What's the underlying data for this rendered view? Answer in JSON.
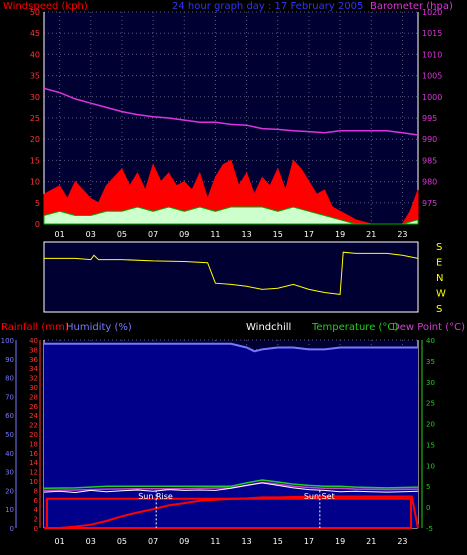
{
  "colors": {
    "background": "#000000",
    "plot_bg": "#000033",
    "wind_plot_bg": "#00007a",
    "wind_speed": "#ff0000",
    "wind_gust": "#ff0000",
    "wind_avg": "#ccffcc",
    "wind_green": "#00aa00",
    "barometer": "#dd33dd",
    "direction": "#ffff00",
    "rainfall": "#ff0000",
    "humidity": "#7777ff",
    "windchill": "#ffffff",
    "temperature": "#22cc22",
    "dewpoint": "#cc44cc",
    "sun_marker": "#ffffff",
    "axis": "#ffffff"
  },
  "header": {
    "windspeed_label": "Windspeed (kph)",
    "title": "24 hour graph day : 17 February 2005",
    "barometer_label": "Barometer (hpa)"
  },
  "direction": {
    "labels": [
      "S",
      "E",
      "N",
      "W",
      "S"
    ]
  },
  "lower_header": {
    "rainfall_label": "Rainfall (mm)",
    "humidity_label": "Humidity (%)",
    "windchill_label": "Windchill",
    "temperature_label": "Temperature (°C)",
    "dewpoint_label": "Dew Point (°C)"
  },
  "sun": {
    "rise_label": "Sun Rise",
    "set_label": "Sun Set",
    "rise_hour": 7.2,
    "set_hour": 17.7
  },
  "chart_data": [
    {
      "type": "line",
      "x_ticks": [
        "01",
        "03",
        "05",
        "07",
        "09",
        "11",
        "13",
        "15",
        "17",
        "19",
        "21",
        "23"
      ],
      "x_tick_hours": [
        1,
        3,
        5,
        7,
        9,
        11,
        13,
        15,
        17,
        19,
        21,
        23
      ],
      "xlim": [
        0,
        24
      ],
      "y_left": {
        "label": "Windspeed (kph)",
        "ylim": [
          0,
          50
        ],
        "ticks": [
          0,
          5,
          10,
          15,
          20,
          25,
          30,
          35,
          40,
          45,
          50
        ]
      },
      "y_right": {
        "label": "Barometer (hpa)",
        "ylim": [
          970,
          1020
        ],
        "ticks": [
          975,
          980,
          985,
          990,
          995,
          1000,
          1005,
          1010,
          1015,
          1020
        ]
      },
      "series": [
        {
          "name": "Barometer (hpa)",
          "axis": "right",
          "x": [
            0,
            1,
            2,
            3,
            4,
            5,
            6,
            7,
            8,
            9,
            10,
            11,
            12,
            13,
            14,
            15,
            16,
            17,
            18,
            19,
            20,
            21,
            22,
            23,
            24
          ],
          "y": [
            1002,
            1001,
            999.5,
            998.5,
            997.5,
            996.5,
            995.8,
            995.3,
            995,
            994.5,
            994,
            994,
            993.5,
            993.3,
            992.5,
            992.3,
            992,
            991.8,
            991.5,
            992,
            992,
            992,
            992,
            991.5,
            991
          ]
        },
        {
          "name": "Windspeed (kph)",
          "axis": "left",
          "x": [
            0,
            0.5,
            1,
            1.5,
            2,
            2.5,
            3,
            3.5,
            4,
            4.5,
            5,
            5.5,
            6,
            6.5,
            7,
            7.5,
            8,
            8.5,
            9,
            9.5,
            10,
            10.5,
            11,
            11.5,
            12,
            12.5,
            13,
            13.5,
            14,
            14.5,
            15,
            15.5,
            16,
            16.5,
            17,
            17.5,
            18,
            18.5,
            19,
            19.5,
            20,
            21,
            22,
            23,
            23.5,
            24
          ],
          "y": [
            7,
            8,
            9,
            6,
            10,
            8,
            6,
            5,
            9,
            11,
            13,
            9,
            12,
            8,
            14,
            10,
            12,
            9,
            10,
            8,
            12,
            6,
            11,
            14,
            15,
            9,
            12,
            7,
            11,
            9,
            13,
            8,
            15,
            13,
            10,
            7,
            8,
            4,
            3,
            2,
            1,
            0,
            0,
            0,
            3,
            8
          ]
        },
        {
          "name": "Wind Average",
          "axis": "left",
          "x": [
            0,
            1,
            2,
            3,
            4,
            5,
            6,
            7,
            8,
            9,
            10,
            11,
            12,
            13,
            14,
            15,
            16,
            17,
            18,
            19,
            20,
            21,
            22,
            23,
            24
          ],
          "y": [
            2,
            3,
            2,
            2,
            3,
            3,
            4,
            3,
            4,
            3,
            4,
            3,
            4,
            4,
            4,
            3,
            4,
            3,
            2,
            1,
            0,
            0,
            0,
            0,
            1
          ]
        },
        {
          "name": "Wind Direction",
          "axis": "direction",
          "x": [
            0,
            1,
            2,
            3,
            3.2,
            3.5,
            5,
            7,
            9,
            10.5,
            11,
            12,
            13,
            14,
            15,
            16,
            17,
            18,
            19,
            19.2,
            20,
            22,
            23,
            24
          ],
          "y": [
            0.2,
            0.2,
            0.2,
            0.22,
            0.15,
            0.22,
            0.22,
            0.24,
            0.25,
            0.27,
            0.6,
            0.62,
            0.65,
            0.7,
            0.68,
            0.62,
            0.7,
            0.75,
            0.78,
            0.1,
            0.12,
            0.12,
            0.15,
            0.2
          ]
        }
      ]
    },
    {
      "type": "line",
      "x_ticks": [
        "01",
        "03",
        "05",
        "07",
        "09",
        "11",
        "13",
        "15",
        "17",
        "19",
        "21",
        "23"
      ],
      "x_tick_hours": [
        1,
        3,
        5,
        7,
        9,
        11,
        13,
        15,
        17,
        19,
        21,
        23
      ],
      "xlim": [
        0,
        24
      ],
      "y_humidity": {
        "label": "Humidity (%)",
        "ylim": [
          0,
          100
        ],
        "ticks": [
          0,
          10,
          20,
          30,
          40,
          50,
          60,
          70,
          80,
          90,
          100
        ]
      },
      "y_rain": {
        "label": "Rainfall (mm)",
        "ylim": [
          0,
          40
        ],
        "ticks": [
          0,
          2,
          4,
          6,
          8,
          10,
          12,
          14,
          16,
          18,
          20,
          22,
          24,
          26,
          28,
          30,
          32,
          34,
          36,
          38,
          40
        ]
      },
      "y_temp": {
        "label": "Temperature (°C)",
        "ylim": [
          -5,
          40
        ],
        "ticks": [
          -5,
          0,
          5,
          10,
          15,
          20,
          25,
          30,
          35,
          40
        ]
      },
      "series": [
        {
          "name": "Humidity (%)",
          "axis": "humidity",
          "x": [
            0,
            12,
            13,
            13.5,
            14,
            15,
            16,
            17,
            18,
            19,
            20,
            21,
            22,
            23,
            24
          ],
          "y": [
            98,
            98,
            96,
            94,
            95,
            96,
            96,
            95,
            95,
            96,
            96,
            96,
            96,
            96,
            96
          ]
        },
        {
          "name": "Rainfall (mm)",
          "axis": "rain",
          "x": [
            0,
            1,
            2,
            3,
            4,
            5,
            6,
            7,
            8,
            9,
            10,
            11,
            12,
            13,
            14,
            15,
            16,
            17,
            18,
            19,
            20,
            21,
            22,
            23,
            23.6,
            24
          ],
          "y": [
            0,
            0,
            0.3,
            0.7,
            1.5,
            2.5,
            3.3,
            4,
            4.8,
            5.3,
            5.8,
            6,
            6.2,
            6.3,
            6.5,
            6.5,
            6.6,
            6.6,
            6.7,
            6.7,
            6.7,
            6.7,
            6.7,
            6.7,
            6.7,
            0
          ]
        },
        {
          "name": "Temperature (°C)",
          "axis": "temp",
          "x": [
            0,
            2,
            4,
            6,
            8,
            10,
            12,
            13,
            14,
            15,
            16,
            17,
            18,
            19,
            20,
            22,
            24
          ],
          "y": [
            4.5,
            4.6,
            5,
            5,
            5,
            5,
            5,
            5.8,
            6.5,
            6,
            5.5,
            5.2,
            5,
            5,
            4.8,
            4.6,
            4.8
          ]
        },
        {
          "name": "Windchill",
          "axis": "temp",
          "x": [
            0,
            1,
            2,
            3,
            4,
            5,
            6,
            7,
            8,
            9,
            10,
            11,
            12,
            13,
            14,
            15,
            16,
            17,
            18,
            19,
            20,
            21,
            22,
            23,
            24
          ],
          "y": [
            3.6,
            3.8,
            3.5,
            4,
            3.7,
            3.9,
            4.1,
            3.8,
            4.2,
            4,
            4.1,
            4,
            4.5,
            5.2,
            5.8,
            5.2,
            4.6,
            4.2,
            4,
            3.7,
            3.8,
            3.7,
            3.6,
            3.7,
            3.8
          ]
        },
        {
          "name": "Dew Point (°C)",
          "axis": "temp",
          "x": [
            0,
            2,
            4,
            6,
            8,
            10,
            12,
            13,
            14,
            15,
            16,
            17,
            18,
            19,
            20,
            22,
            24
          ],
          "y": [
            4,
            4.1,
            4.3,
            4.4,
            4.4,
            4.5,
            4.6,
            5.2,
            5.9,
            5.5,
            5,
            4.7,
            4.5,
            4.5,
            4.3,
            4.2,
            4.3
          ]
        }
      ]
    }
  ]
}
